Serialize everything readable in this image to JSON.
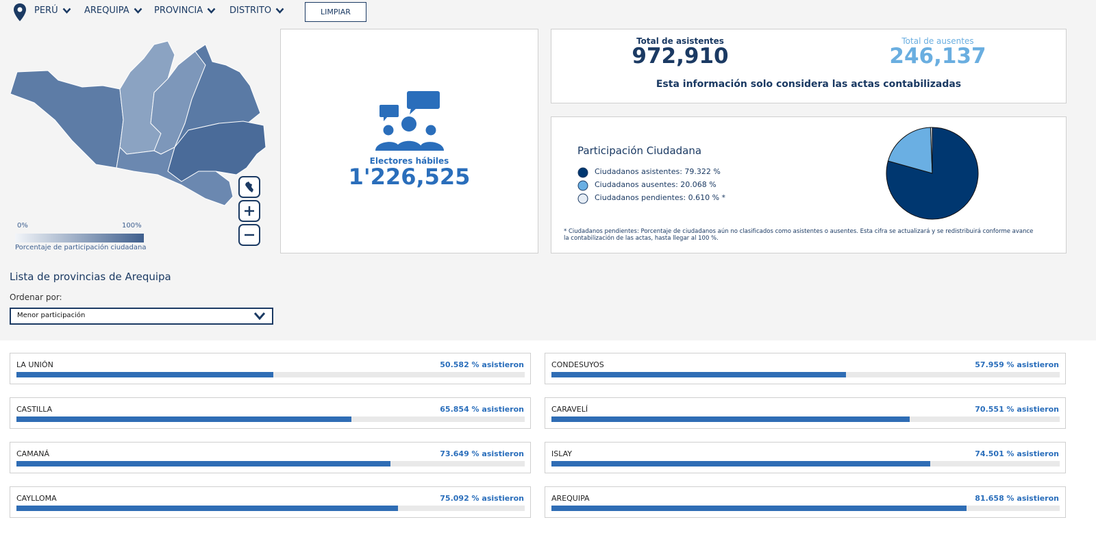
{
  "nav": {
    "items": [
      "PERÚ",
      "AREQUIPA",
      "PROVINCIA",
      "DISTRITO"
    ],
    "button": "LIMPIAR"
  },
  "map": {
    "legend_min": "0%",
    "legend_max": "100%",
    "legend_caption": "Porcentaje de participación ciudadana"
  },
  "electores": {
    "label": "Electores hábiles",
    "value": "1'226,525"
  },
  "totals": {
    "asistentes_label": "Total de asistentes",
    "asistentes": "972,910",
    "ausentes_label": "Total de ausentes",
    "ausentes": "246,137",
    "note": "Esta información solo considera las actas contabilizadas"
  },
  "participation": {
    "type": "pie",
    "title": "Participación Ciudadana",
    "series": [
      {
        "label": "Ciudadanos asistentes: 79.322 %",
        "value": 79.322,
        "color": "#003770"
      },
      {
        "label": "Ciudadanos ausentes: 20.068 %",
        "value": 20.068,
        "color": "#6aafe3"
      },
      {
        "label": "Ciudadanos pendientes: 0.610 % *",
        "value": 0.61,
        "color": "#e6edf5"
      }
    ],
    "footnote": "* Ciudadanos pendientes: Porcentaje de ciudadanos aún no clasificados como asistentes o ausentes. Esta cifra se actualizará y se redistribuirá conforme avance la contabilización de las actas, hasta llegar al 100 %."
  },
  "provinces": {
    "title": "Lista de provincias de Arequipa",
    "sort_label": "Ordenar por:",
    "sort_value": "Menor participación",
    "xlim": [
      0,
      100
    ],
    "color": "#2f6db5",
    "rows": [
      {
        "name": "LA UNIÓN",
        "value": 50.582,
        "value_label": "50.582 % asistieron"
      },
      {
        "name": "CONDESUYOS",
        "value": 57.959,
        "value_label": "57.959 % asistieron"
      },
      {
        "name": "CASTILLA",
        "value": 65.854,
        "value_label": "65.854 % asistieron"
      },
      {
        "name": "CARAVELÍ",
        "value": 70.551,
        "value_label": "70.551 % asistieron"
      },
      {
        "name": "CAMANÁ",
        "value": 73.649,
        "value_label": "73.649 % asistieron"
      },
      {
        "name": "ISLAY",
        "value": 74.501,
        "value_label": "74.501 % asistieron"
      },
      {
        "name": "CAYLLOMA",
        "value": 75.092,
        "value_label": "75.092 % asistieron"
      },
      {
        "name": "AREQUIPA",
        "value": 81.658,
        "value_label": "81.658 % asistieron"
      }
    ]
  }
}
